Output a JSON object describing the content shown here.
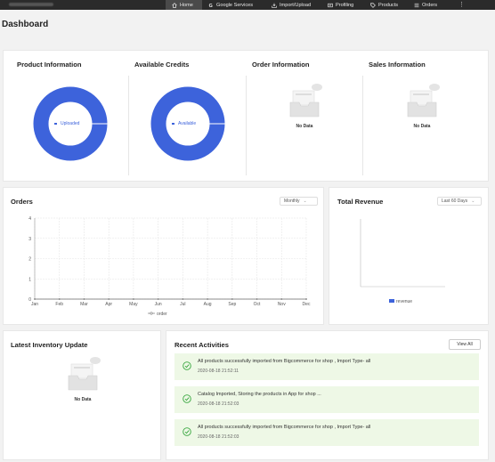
{
  "nav": {
    "items": [
      {
        "label": "Home",
        "icon": "home-icon",
        "active": true
      },
      {
        "label": "Google Services",
        "icon": "google-icon",
        "active": false
      },
      {
        "label": "Import/Upload",
        "icon": "import-icon",
        "active": false
      },
      {
        "label": "Profiling",
        "icon": "profiling-icon",
        "active": false
      },
      {
        "label": "Products",
        "icon": "tag-icon",
        "active": false
      },
      {
        "label": "Orders",
        "icon": "list-icon",
        "active": false
      }
    ],
    "more": "⋮"
  },
  "page": {
    "title": "Dashboard"
  },
  "summary": {
    "product": {
      "title": "Product Information",
      "legend": "Uploaded"
    },
    "credits": {
      "title": "Available Credits",
      "legend": "Available"
    },
    "order": {
      "title": "Order Information",
      "no_data": "No Data"
    },
    "sales": {
      "title": "Sales Information",
      "no_data": "No Data"
    }
  },
  "orders": {
    "title": "Orders",
    "period": "Monthly"
  },
  "revenue": {
    "title": "Total Revenue",
    "period": "Last 60 Days"
  },
  "inventory": {
    "title": "Latest Inventory Update",
    "no_data": "No Data"
  },
  "activities": {
    "title": "Recent Activities",
    "view_all": "View All",
    "items": [
      {
        "message": "All products successfully imported from Bigcommerce for shop , Import Type- all",
        "timestamp": "2020-08-18 21:52:11"
      },
      {
        "message": "Catalog Imported, Storing the products in App for shop ...",
        "timestamp": "2020-08-18 21:52:03"
      },
      {
        "message": "All products successfully imported from Bigcommerce for shop , Import Type- all",
        "timestamp": "2020-08-18 21:52:03"
      }
    ]
  },
  "colors": {
    "accent": "#3d63db",
    "success": "#37a63e",
    "activity_bg": "#eef8e6",
    "topbar": "#2b2b2b"
  },
  "chart_data": [
    {
      "type": "line",
      "x": [
        "Jan",
        "Feb",
        "Mar",
        "Apr",
        "May",
        "Jun",
        "Jul",
        "Aug",
        "Sep",
        "Oct",
        "Nov",
        "Dec"
      ],
      "series": [
        {
          "name": "order",
          "values": [
            0,
            0,
            0,
            0,
            0,
            0,
            0,
            0,
            0,
            0,
            0,
            0
          ]
        }
      ],
      "ylim": [
        0,
        4
      ],
      "yticks": [
        "0",
        "1",
        "2",
        "3",
        "4"
      ],
      "grid": true,
      "legend": "bottom"
    },
    {
      "type": "bar",
      "series": [
        {
          "name": "revenue",
          "values": []
        }
      ],
      "legend": "bottom"
    }
  ]
}
